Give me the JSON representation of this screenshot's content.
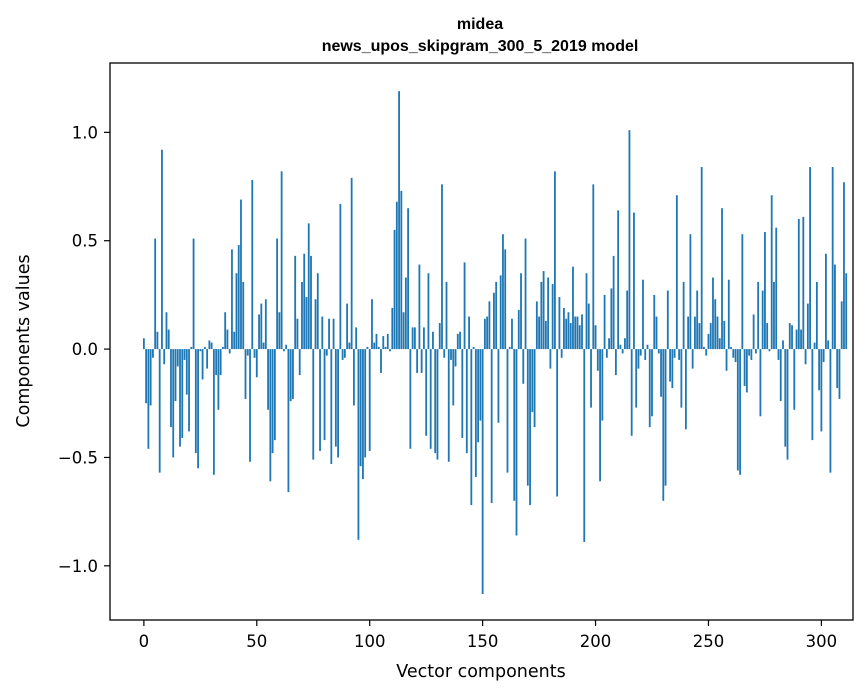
{
  "chart_data": {
    "type": "bar",
    "title": "midea",
    "subtitle": "news_upos_skipgram_300_5_2019 model",
    "xlabel": "Vector components",
    "ylabel": "Components values",
    "xlim": [
      -15,
      314
    ],
    "ylim": [
      -1.25,
      1.32
    ],
    "xticks": [
      0,
      50,
      100,
      150,
      200,
      250,
      300
    ],
    "xtick_labels": [
      "0",
      "50",
      "100",
      "150",
      "200",
      "250",
      "300"
    ],
    "yticks": [
      -1.0,
      -0.5,
      0.0,
      0.5,
      1.0
    ],
    "ytick_labels": [
      "−1.0",
      "−0.5",
      "0.0",
      "0.5",
      "1.0"
    ],
    "grid": false,
    "bar_color": "#1f77b4",
    "values": [
      0.05,
      -0.25,
      -0.46,
      -0.26,
      -0.04,
      0.51,
      0.08,
      -0.57,
      0.92,
      -0.07,
      0.17,
      0.09,
      -0.36,
      -0.5,
      -0.24,
      -0.08,
      -0.45,
      -0.41,
      -0.05,
      -0.21,
      -0.38,
      0.01,
      0.51,
      -0.48,
      -0.55,
      -0.01,
      -0.14,
      0.01,
      -0.09,
      0.04,
      0.03,
      -0.58,
      -0.12,
      -0.28,
      -0.12,
      0.01,
      0.17,
      0.09,
      -0.02,
      0.46,
      0.08,
      0.35,
      0.48,
      0.69,
      0.31,
      -0.23,
      -0.03,
      -0.52,
      0.78,
      -0.04,
      -0.13,
      0.16,
      0.21,
      0.03,
      0.23,
      -0.28,
      -0.61,
      -0.48,
      -0.42,
      0.51,
      0.17,
      0.82,
      -0.01,
      0.02,
      -0.66,
      -0.24,
      -0.23,
      0.43,
      0.14,
      -0.12,
      0.31,
      0.44,
      0.24,
      0.58,
      0.43,
      -0.51,
      0.23,
      0.35,
      -0.47,
      0.15,
      -0.42,
      -0.03,
      0.14,
      -0.53,
      0.14,
      -0.45,
      -0.5,
      0.67,
      -0.05,
      -0.04,
      0.21,
      0.03,
      0.79,
      -0.26,
      0.1,
      -0.88,
      -0.54,
      -0.6,
      -0.5,
      0.01,
      -0.47,
      0.23,
      0.03,
      0.07,
      0.01,
      -0.11,
      0.06,
      0.01,
      0.07,
      -0.01,
      0.19,
      0.55,
      0.68,
      1.19,
      0.73,
      0.17,
      0.33,
      0.65,
      -0.46,
      0.1,
      0.1,
      -0.11,
      0.39,
      -0.11,
      0.1,
      -0.4,
      0.35,
      -0.46,
      0.08,
      -0.48,
      -0.51,
      0.12,
      0.76,
      -0.04,
      0.31,
      -0.52,
      -0.05,
      -0.26,
      -0.08,
      0.07,
      0.08,
      -0.41,
      0.4,
      -0.48,
      0.15,
      -0.72,
      0.01,
      -0.59,
      -0.43,
      -0.33,
      -1.13,
      0.14,
      0.15,
      0.22,
      -0.71,
      0.26,
      0.31,
      -0.34,
      0.34,
      0.53,
      0.46,
      -0.57,
      0.01,
      0.14,
      -0.7,
      -0.86,
      0.18,
      0.35,
      -0.16,
      0.51,
      -0.63,
      -0.72,
      -0.29,
      -0.36,
      0.22,
      0.15,
      0.31,
      0.36,
      0.13,
      0.33,
      -0.09,
      0.3,
      0.82,
      -0.68,
      0.24,
      -0.04,
      0.19,
      0.14,
      0.17,
      0.12,
      0.38,
      0.15,
      0.15,
      0.11,
      0.16,
      -0.89,
      0.35,
      0.21,
      -0.27,
      0.76,
      0.11,
      -0.1,
      -0.61,
      -0.33,
      0.25,
      -0.04,
      0.05,
      0.28,
      0.43,
      -0.12,
      0.64,
      0.02,
      -0.02,
      0.05,
      0.27,
      1.01,
      -0.4,
      0.63,
      -0.27,
      -0.09,
      -0.03,
      0.32,
      -0.05,
      0.02,
      -0.36,
      -0.31,
      0.25,
      0.15,
      -0.02,
      -0.22,
      -0.7,
      -0.63,
      0.27,
      -0.15,
      -0.18,
      -0.04,
      0.71,
      -0.05,
      -0.27,
      0.31,
      -0.37,
      0.15,
      0.53,
      -0.09,
      0.15,
      0.27,
      0.12,
      0.84,
      0.01,
      -0.03,
      0.07,
      0.12,
      0.33,
      0.23,
      0.15,
      0.05,
      0.65,
      0.13,
      -0.1,
      0.32,
      0.01,
      -0.04,
      -0.06,
      -0.56,
      -0.58,
      0.53,
      -0.17,
      -0.2,
      -0.03,
      -0.05,
      0.16,
      -0.02,
      0.31,
      -0.31,
      0.27,
      0.54,
      0.12,
      -0.01,
      0.71,
      0.31,
      0.56,
      -0.05,
      -0.24,
      0.04,
      -0.45,
      -0.51,
      0.12,
      0.11,
      -0.28,
      0.09,
      0.6,
      0.09,
      0.61,
      -0.07,
      0.21,
      0.84,
      -0.42,
      0.03,
      0.31,
      -0.19,
      -0.38,
      -0.06,
      0.44,
      0.04,
      -0.57,
      0.84,
      0.39,
      -0.18,
      -0.23,
      0.22,
      0.77,
      0.35
    ]
  }
}
